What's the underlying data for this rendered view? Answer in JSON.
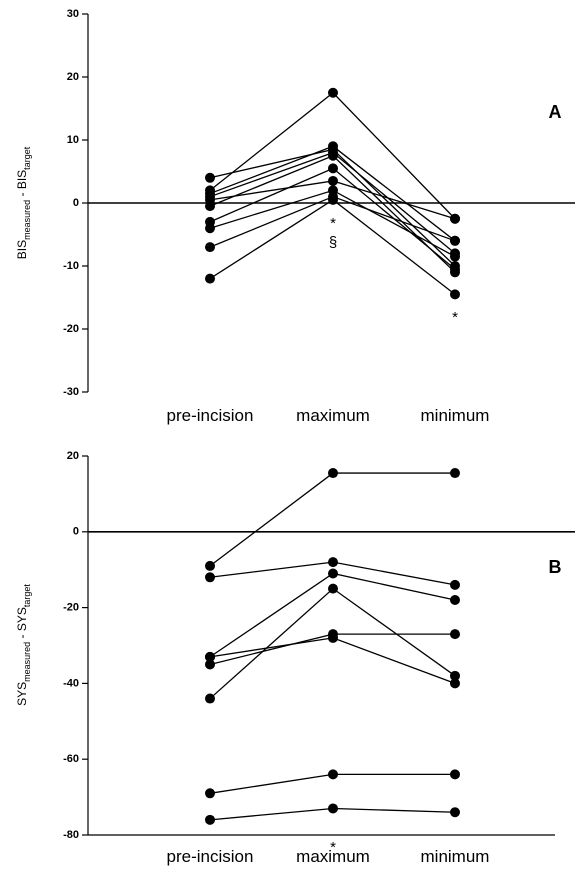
{
  "chart_data": [
    {
      "type": "line",
      "panel_label": "A",
      "ylabel": [
        "BIS",
        "measured",
        " - BIS",
        "target"
      ],
      "categories": [
        "pre-incision",
        "maximum",
        "minimum"
      ],
      "ylim": [
        -30,
        30
      ],
      "yticks": [
        -30,
        -20,
        -10,
        0,
        10,
        20,
        30
      ],
      "zero_line": true,
      "bottom_axis": false,
      "color": "#000000",
      "annotations": [
        "*",
        "§",
        "*"
      ],
      "series": [
        {
          "values": [
            4,
            8.5,
            -10
          ]
        },
        {
          "values": [
            2,
            17.5,
            -2.5
          ]
        },
        {
          "values": [
            1.5,
            9,
            -6
          ]
        },
        {
          "values": [
            1,
            8,
            -8
          ]
        },
        {
          "values": [
            0.5,
            3.5,
            -2.5
          ]
        },
        {
          "values": [
            -0.5,
            7.5,
            -11
          ]
        },
        {
          "values": [
            -3,
            5.5,
            -10.5
          ]
        },
        {
          "values": [
            -4,
            2,
            -8.5
          ]
        },
        {
          "values": [
            -7,
            1,
            -6
          ]
        },
        {
          "values": [
            -12,
            0.5,
            -14.5
          ]
        }
      ]
    },
    {
      "type": "line",
      "panel_label": "B",
      "ylabel": [
        "SYS",
        "measured",
        " - SYS",
        "target"
      ],
      "categories": [
        "pre-incision",
        "maximum",
        "minimum"
      ],
      "ylim": [
        -80,
        20
      ],
      "yticks": [
        -80,
        -60,
        -40,
        -20,
        0,
        20
      ],
      "zero_line": true,
      "bottom_axis": true,
      "color": "#000000",
      "annotations": [
        "*"
      ],
      "series": [
        {
          "values": [
            -9,
            15.5,
            15.5
          ]
        },
        {
          "values": [
            -12,
            -8,
            -14
          ]
        },
        {
          "values": [
            -33,
            -11,
            -18
          ]
        },
        {
          "values": [
            -44,
            -15,
            -38
          ]
        },
        {
          "values": [
            -35,
            -27,
            -27
          ]
        },
        {
          "values": [
            -33,
            -28,
            -40
          ]
        },
        {
          "values": [
            -69,
            -64,
            -64
          ]
        },
        {
          "values": [
            -76,
            -73,
            -74
          ]
        }
      ]
    }
  ]
}
